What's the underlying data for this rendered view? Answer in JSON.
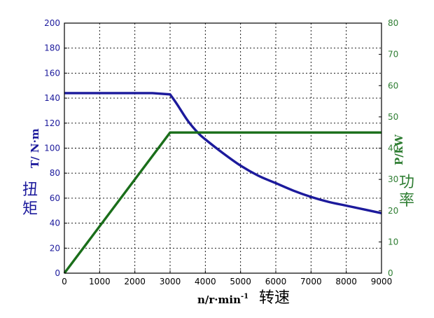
{
  "chart_data": {
    "type": "line",
    "xlabel": "n/r·min",
    "xlabel_sup": "-1",
    "xlabel_cn": "转速",
    "ylabel_left": "T/ N·m",
    "ylabel_left_cn": [
      "扭",
      "矩"
    ],
    "ylabel_right": "P/kW",
    "ylabel_right_cn": [
      "功",
      "率"
    ],
    "xlim": [
      0,
      9000
    ],
    "ylim_left": [
      0,
      200
    ],
    "ylim_right": [
      0,
      80
    ],
    "x_ticks": [
      0,
      1000,
      2000,
      3000,
      4000,
      5000,
      6000,
      7000,
      8000,
      9000
    ],
    "y_left_ticks": [
      0,
      20,
      40,
      60,
      80,
      100,
      120,
      140,
      160,
      180,
      200
    ],
    "y_right_ticks": [
      0,
      10,
      20,
      30,
      40,
      50,
      60,
      70,
      80
    ],
    "grid": true,
    "colors": {
      "torque": "#1c1a9c",
      "power": "#1a6e1a",
      "left_axis": "#1c1a9c",
      "right_axis": "#2e7d32",
      "grid": "#000000"
    },
    "series": [
      {
        "key": "torque",
        "axis": "left",
        "x": [
          0,
          2500,
          3000,
          3200,
          3500,
          3800,
          4000,
          4500,
          5000,
          5500,
          6000,
          6500,
          7000,
          7500,
          8000,
          8500,
          9000
        ],
        "values": [
          144,
          144,
          143,
          135,
          122,
          112,
          107,
          96,
          86,
          78,
          72,
          66,
          61,
          57,
          54,
          51,
          48
        ]
      },
      {
        "key": "power",
        "axis": "right",
        "x": [
          0,
          3000,
          9000
        ],
        "values": [
          0,
          45,
          45
        ]
      }
    ]
  }
}
